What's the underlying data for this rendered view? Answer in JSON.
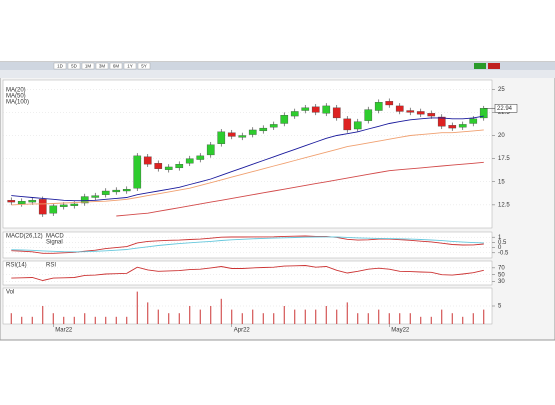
{
  "toolbar": {
    "buttons": [
      "1D",
      "5D",
      "1M",
      "3M",
      "6M",
      "1Y",
      "5Y"
    ]
  },
  "chart_data": [
    {
      "type": "candlestick",
      "up_color": "#2ecc2e",
      "down_color": "#dd2222",
      "last_label": "22.94",
      "ylim": [
        10,
        26
      ],
      "yticks": [
        12.5,
        15,
        17.5,
        20,
        22.5,
        25
      ],
      "grid": true,
      "candles": {
        "open": [
          13.0,
          12.6,
          12.8,
          13.1,
          11.6,
          12.3,
          12.4,
          12.7,
          13.3,
          13.6,
          13.9,
          14.0,
          14.3,
          17.7,
          17.0,
          16.3,
          16.5,
          17.0,
          17.4,
          17.9,
          19.1,
          20.3,
          19.8,
          20.1,
          20.5,
          20.9,
          21.3,
          22.1,
          22.7,
          23.1,
          22.4,
          23.0,
          21.8,
          20.7,
          21.6,
          22.7,
          23.7,
          23.2,
          22.7,
          22.6,
          22.4,
          22.0,
          21.1,
          20.9,
          21.3,
          21.9
        ],
        "high": [
          13.3,
          13.2,
          13.3,
          13.4,
          12.7,
          12.8,
          12.9,
          13.7,
          13.8,
          14.3,
          14.4,
          14.5,
          18.1,
          18.0,
          17.3,
          16.9,
          17.2,
          17.8,
          18.1,
          19.3,
          20.7,
          20.6,
          20.3,
          20.9,
          21.1,
          21.5,
          22.5,
          22.9,
          23.3,
          23.4,
          23.5,
          23.3,
          22.1,
          21.8,
          23.1,
          23.9,
          24.0,
          23.5,
          23.0,
          22.9,
          22.7,
          22.3,
          21.4,
          21.5,
          22.1,
          23.2
        ],
        "low": [
          12.5,
          12.3,
          12.5,
          11.2,
          11.3,
          12.0,
          12.1,
          12.4,
          13.0,
          13.3,
          13.6,
          13.7,
          14.0,
          16.6,
          16.1,
          16.0,
          16.2,
          16.7,
          17.1,
          17.6,
          18.8,
          19.6,
          19.5,
          19.8,
          20.2,
          20.6,
          21.0,
          21.8,
          22.4,
          22.2,
          22.1,
          21.6,
          20.3,
          20.4,
          21.3,
          22.4,
          23.0,
          22.3,
          22.2,
          22.0,
          21.8,
          20.7,
          20.5,
          20.6,
          21.0,
          21.6
        ],
        "close": [
          12.8,
          12.9,
          13.0,
          11.5,
          12.4,
          12.5,
          12.6,
          13.4,
          13.5,
          14.0,
          14.1,
          14.2,
          17.8,
          16.9,
          16.4,
          16.6,
          16.9,
          17.5,
          17.8,
          19.0,
          20.4,
          19.9,
          20.0,
          20.6,
          20.8,
          21.2,
          22.2,
          22.6,
          23.0,
          22.5,
          23.2,
          21.9,
          20.6,
          21.5,
          22.8,
          23.6,
          23.3,
          22.6,
          22.5,
          22.3,
          22.1,
          21.0,
          20.8,
          21.2,
          21.8,
          22.94
        ]
      },
      "series": [
        {
          "name": "MA(20)",
          "color": "#1a1a9c",
          "values": [
            13.5,
            13.4,
            13.3,
            13.2,
            13.1,
            13.0,
            12.95,
            12.95,
            13.0,
            13.1,
            13.2,
            13.3,
            13.6,
            13.8,
            14.0,
            14.2,
            14.4,
            14.7,
            15.0,
            15.3,
            15.7,
            16.1,
            16.5,
            16.9,
            17.3,
            17.7,
            18.1,
            18.5,
            18.9,
            19.3,
            19.7,
            20.0,
            20.2,
            20.4,
            20.7,
            21.0,
            21.3,
            21.5,
            21.7,
            21.8,
            21.9,
            21.9,
            21.8,
            21.8,
            21.9,
            22.1
          ]
        },
        {
          "name": "MA(50)",
          "color": "#f0a070",
          "values": [
            12.5,
            12.55,
            12.6,
            12.6,
            12.65,
            12.7,
            12.75,
            12.8,
            12.85,
            12.9,
            13.0,
            13.1,
            13.3,
            13.5,
            13.7,
            13.9,
            14.1,
            14.3,
            14.6,
            14.9,
            15.2,
            15.5,
            15.8,
            16.1,
            16.4,
            16.7,
            17.0,
            17.3,
            17.6,
            17.9,
            18.2,
            18.5,
            18.8,
            19.0,
            19.2,
            19.4,
            19.6,
            19.8,
            20.0,
            20.1,
            20.2,
            20.3,
            20.3,
            20.4,
            20.5,
            20.6
          ]
        },
        {
          "name": "MA(100)",
          "color": "#d24a4a",
          "values": [
            null,
            null,
            null,
            null,
            null,
            null,
            null,
            null,
            null,
            null,
            11.3,
            11.4,
            11.5,
            11.6,
            11.8,
            12.0,
            12.2,
            12.4,
            12.6,
            12.8,
            13.0,
            13.2,
            13.4,
            13.6,
            13.8,
            14.0,
            14.2,
            14.4,
            14.6,
            14.8,
            15.0,
            15.2,
            15.4,
            15.6,
            15.8,
            16.0,
            16.2,
            16.3,
            16.4,
            16.5,
            16.6,
            16.7,
            16.8,
            16.9,
            17.0,
            17.1
          ]
        }
      ]
    },
    {
      "type": "line",
      "title": "MACD(26,12)",
      "ylim": [
        -1,
        1.5
      ],
      "yticks": [
        -0.5,
        0,
        0.5,
        1
      ],
      "grid": true,
      "series": [
        {
          "name": "MACD",
          "color": "#cc3333",
          "values": [
            -0.3,
            -0.35,
            -0.4,
            -0.55,
            -0.55,
            -0.5,
            -0.45,
            -0.35,
            -0.25,
            -0.1,
            0,
            0.1,
            0.45,
            0.6,
            0.65,
            0.7,
            0.72,
            0.78,
            0.82,
            0.9,
            1.0,
            1.02,
            1.02,
            1.03,
            1.03,
            1.04,
            1.08,
            1.1,
            1.12,
            1.08,
            1.08,
            0.98,
            0.8,
            0.72,
            0.75,
            0.82,
            0.82,
            0.76,
            0.7,
            0.62,
            0.55,
            0.42,
            0.3,
            0.25,
            0.26,
            0.35
          ]
        },
        {
          "name": "Signal",
          "color": "#66c8dd",
          "values": [
            -0.2,
            -0.23,
            -0.26,
            -0.32,
            -0.36,
            -0.39,
            -0.4,
            -0.39,
            -0.36,
            -0.31,
            -0.25,
            -0.18,
            -0.05,
            0.08,
            0.2,
            0.3,
            0.38,
            0.46,
            0.53,
            0.6,
            0.68,
            0.75,
            0.8,
            0.85,
            0.88,
            0.91,
            0.94,
            0.97,
            1.0,
            1.02,
            1.03,
            1.02,
            0.98,
            0.93,
            0.9,
            0.88,
            0.87,
            0.85,
            0.82,
            0.78,
            0.73,
            0.67,
            0.6,
            0.53,
            0.48,
            0.45
          ]
        }
      ]
    },
    {
      "type": "line",
      "title": "RSI(14)",
      "ylim": [
        20,
        90
      ],
      "yticks": [
        30,
        50,
        70
      ],
      "grid": true,
      "series": [
        {
          "name": "RSI",
          "color": "#cc3333",
          "values": [
            40,
            41,
            42,
            33,
            40,
            41,
            42,
            48,
            49,
            52,
            53,
            54,
            72,
            64,
            60,
            61,
            62,
            65,
            66,
            70,
            74,
            68,
            68,
            70,
            71,
            72,
            75,
            76,
            77,
            72,
            74,
            63,
            55,
            60,
            66,
            69,
            66,
            60,
            59,
            58,
            57,
            50,
            49,
            52,
            56,
            63
          ]
        }
      ]
    },
    {
      "type": "bar",
      "title": "Vol",
      "color": "#cc3333",
      "ylim": [
        0,
        10
      ],
      "yticks": [
        5
      ],
      "grid": true,
      "categories": [
        null,
        null,
        null,
        null,
        "Mar22",
        null,
        null,
        null,
        null,
        null,
        null,
        null,
        null,
        null,
        null,
        null,
        null,
        null,
        null,
        null,
        null,
        "Apr22",
        null,
        null,
        null,
        null,
        null,
        null,
        null,
        null,
        null,
        null,
        null,
        null,
        null,
        null,
        "May22",
        null,
        null,
        null,
        null,
        null,
        null,
        null,
        null,
        null
      ],
      "values": [
        3,
        2,
        2,
        5,
        3,
        2,
        2,
        3,
        2,
        2,
        2,
        2,
        9,
        6,
        4,
        3,
        3,
        5,
        4,
        5,
        7,
        4,
        3,
        4,
        3,
        3,
        5,
        4,
        4,
        4,
        5,
        4,
        6,
        3,
        3,
        4,
        3,
        3,
        3,
        2,
        2,
        4,
        3,
        2,
        3,
        4
      ]
    }
  ]
}
